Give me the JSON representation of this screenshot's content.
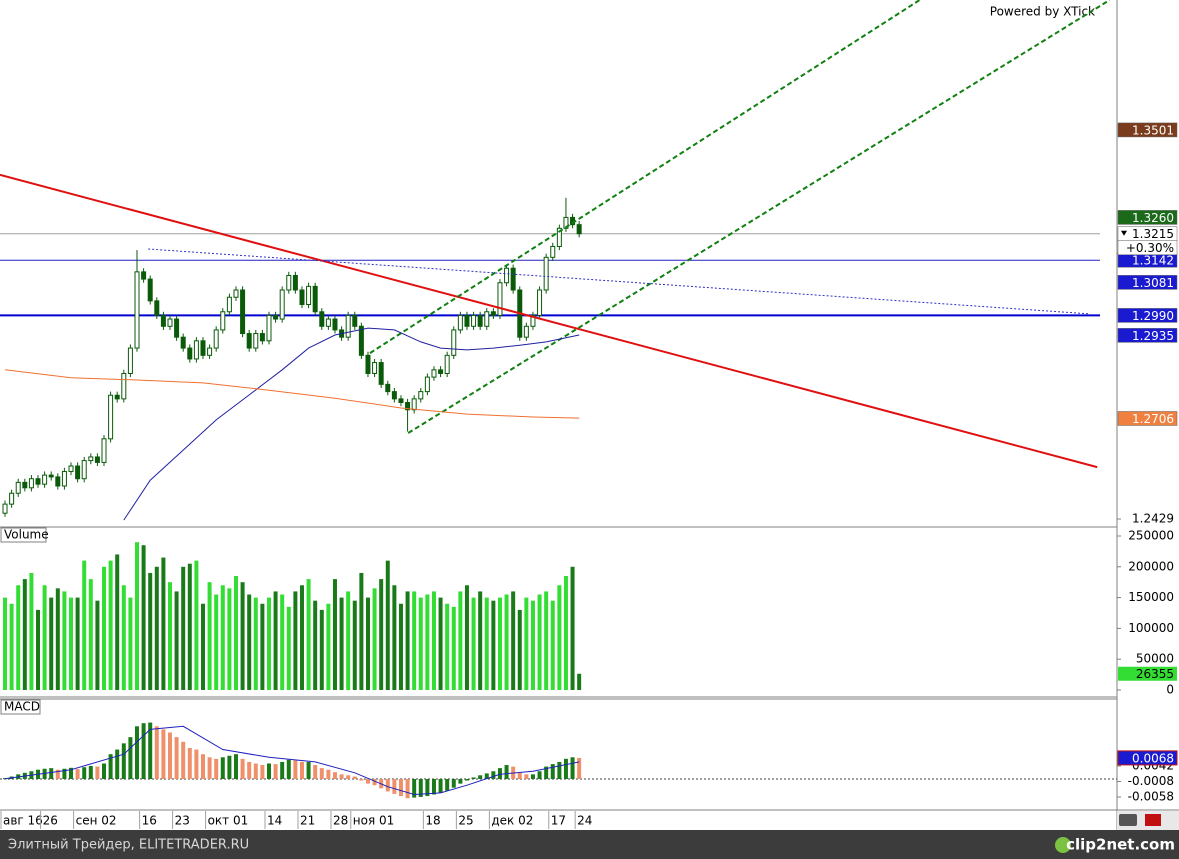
{
  "header": {
    "powered": "Powered by XTick"
  },
  "footer": {
    "site": "Элитный Трейдер, ELITETRADER.RU",
    "brand": "clip2net.com"
  },
  "chart_data": [
    {
      "type": "candlestick",
      "xlim": [
        -0.76,
        168.5
      ],
      "ylim": [
        1.2407,
        1.3859
      ],
      "yticks": [
        1.2429
      ],
      "up_color": "#ffffff",
      "down_color": "#0a5a0a",
      "edge_color": "#0a5a0a",
      "categories": [
        "авг 16",
        null,
        null,
        null,
        null,
        null,
        "26",
        null,
        null,
        null,
        null,
        "сен 02",
        null,
        null,
        null,
        null,
        null,
        null,
        null,
        null,
        null,
        "16",
        null,
        null,
        null,
        null,
        "23",
        null,
        null,
        null,
        null,
        "окт 01",
        null,
        null,
        null,
        null,
        null,
        null,
        null,
        null,
        "14",
        null,
        null,
        null,
        null,
        "21",
        null,
        null,
        null,
        null,
        "28",
        null,
        null,
        "ноя 01",
        null,
        null,
        null,
        null,
        null,
        null,
        null,
        null,
        null,
        null,
        "18",
        null,
        null,
        null,
        null,
        "25",
        null,
        null,
        null,
        null,
        "дек 02",
        null,
        null,
        null,
        null,
        null,
        null,
        null,
        null,
        "17",
        null,
        null,
        null,
        "24"
      ],
      "open": [
        1.2445,
        1.247,
        1.25,
        1.253,
        1.2515,
        1.254,
        1.2525,
        1.255,
        1.2545,
        1.252,
        1.256,
        1.2575,
        1.254,
        1.259,
        1.26,
        1.2585,
        1.265,
        1.277,
        1.276,
        1.283,
        1.29,
        1.311,
        1.309,
        1.303,
        1.299,
        1.296,
        1.298,
        1.293,
        1.29,
        1.287,
        1.292,
        1.288,
        1.29,
        1.295,
        1.3,
        1.304,
        1.306,
        1.294,
        1.29,
        1.294,
        1.292,
        1.299,
        1.298,
        1.306,
        1.31,
        1.306,
        1.302,
        1.307,
        1.3,
        1.296,
        1.298,
        1.295,
        1.293,
        1.299,
        1.296,
        1.288,
        1.283,
        1.286,
        1.28,
        1.278,
        1.276,
        1.275,
        1.273,
        1.276,
        1.278,
        1.282,
        1.284,
        1.283,
        1.288,
        1.295,
        1.299,
        1.296,
        1.299,
        1.296,
        1.3,
        1.299,
        1.308,
        1.312,
        1.306,
        1.293,
        1.296,
        1.299,
        1.306,
        1.315,
        1.318,
        1.323,
        1.326,
        1.324
      ],
      "high": [
        1.248,
        1.251,
        1.254,
        1.254,
        1.255,
        1.255,
        1.256,
        1.256,
        1.2555,
        1.257,
        1.2585,
        1.2585,
        1.26,
        1.261,
        1.261,
        1.266,
        1.278,
        1.278,
        1.284,
        1.291,
        1.317,
        1.312,
        1.31,
        1.304,
        1.3,
        1.299,
        1.299,
        1.294,
        1.291,
        1.293,
        1.293,
        1.291,
        1.296,
        1.301,
        1.305,
        1.307,
        1.307,
        1.295,
        1.295,
        1.295,
        1.3,
        1.3,
        1.307,
        1.311,
        1.311,
        1.307,
        1.308,
        1.308,
        1.301,
        1.299,
        1.299,
        1.296,
        1.3,
        1.3,
        1.297,
        1.289,
        1.287,
        1.287,
        1.281,
        1.279,
        1.277,
        1.276,
        1.277,
        1.279,
        1.283,
        1.285,
        1.285,
        1.289,
        1.296,
        1.3,
        1.3,
        1.3,
        1.3,
        1.301,
        1.301,
        1.309,
        1.313,
        1.313,
        1.307,
        1.297,
        1.3,
        1.307,
        1.316,
        1.319,
        1.324,
        1.3314,
        1.327,
        1.325
      ],
      "low": [
        1.2435,
        1.246,
        1.249,
        1.2505,
        1.2505,
        1.2515,
        1.2515,
        1.2535,
        1.251,
        1.251,
        1.255,
        1.253,
        1.253,
        1.258,
        1.2575,
        1.2575,
        1.264,
        1.275,
        1.275,
        1.282,
        1.289,
        1.308,
        1.302,
        1.298,
        1.295,
        1.295,
        1.292,
        1.289,
        1.286,
        1.286,
        1.287,
        1.287,
        1.289,
        1.294,
        1.299,
        1.303,
        1.293,
        1.289,
        1.289,
        1.291,
        1.291,
        1.297,
        1.297,
        1.305,
        1.305,
        1.301,
        1.301,
        1.299,
        1.295,
        1.295,
        1.294,
        1.292,
        1.292,
        1.295,
        1.287,
        1.282,
        1.282,
        1.279,
        1.277,
        1.275,
        1.274,
        1.267,
        1.272,
        1.275,
        1.277,
        1.281,
        1.282,
        1.282,
        1.287,
        1.294,
        1.295,
        1.295,
        1.295,
        1.295,
        1.298,
        1.298,
        1.307,
        1.305,
        1.292,
        1.292,
        1.295,
        1.298,
        1.305,
        1.314,
        1.317,
        1.322,
        1.323,
        1.3205
      ],
      "close": [
        1.247,
        1.25,
        1.253,
        1.2515,
        1.254,
        1.2525,
        1.255,
        1.2545,
        1.252,
        1.256,
        1.2575,
        1.254,
        1.259,
        1.26,
        1.2585,
        1.265,
        1.277,
        1.276,
        1.283,
        1.29,
        1.311,
        1.309,
        1.303,
        1.299,
        1.296,
        1.298,
        1.293,
        1.29,
        1.287,
        1.292,
        1.288,
        1.29,
        1.295,
        1.3,
        1.304,
        1.306,
        1.294,
        1.29,
        1.294,
        1.292,
        1.299,
        1.298,
        1.306,
        1.31,
        1.306,
        1.302,
        1.307,
        1.3,
        1.296,
        1.298,
        1.295,
        1.293,
        1.299,
        1.296,
        1.288,
        1.283,
        1.286,
        1.28,
        1.278,
        1.276,
        1.275,
        1.273,
        1.276,
        1.278,
        1.282,
        1.284,
        1.283,
        1.288,
        1.295,
        1.299,
        1.296,
        1.299,
        1.296,
        1.3,
        1.299,
        1.308,
        1.312,
        1.306,
        1.293,
        1.296,
        1.299,
        1.306,
        1.315,
        1.318,
        1.323,
        1.326,
        1.324,
        1.3215
      ],
      "overlays": [
        {
          "color": "#e01010",
          "width": 2,
          "dash": "none",
          "x": [
            -0.76,
            165.5
          ],
          "values": [
            1.3377,
            1.2572
          ]
        },
        {
          "color": "#108010",
          "width": 2,
          "dash": "5 3",
          "x": [
            55.3,
            138.6
          ],
          "values": [
            1.2886,
            1.3859
          ]
        },
        {
          "color": "#108010",
          "width": 2,
          "dash": "5 3",
          "x": [
            61.1,
            167.4
          ],
          "values": [
            1.2666,
            1.3859
          ]
        },
        {
          "color": "#3030c0",
          "width": 1,
          "dash": "2 2",
          "x": [
            21.7,
            164.4
          ],
          "values": [
            1.3173,
            1.2994
          ]
        },
        {
          "color": "#2020a0",
          "width": 1,
          "dash": "none",
          "x": [
            18,
            22,
            27,
            32,
            37,
            42,
            46,
            50,
            55,
            59,
            63,
            66,
            70,
            74,
            78,
            82,
            87
          ],
          "values": [
            1.2426,
            1.2536,
            1.2619,
            1.2702,
            1.2771,
            1.284,
            1.29,
            1.2936,
            1.2955,
            1.295,
            1.2917,
            1.29,
            1.2895,
            1.29,
            1.2908,
            1.2917,
            1.2936
          ]
        },
        {
          "color": "#f07030",
          "width": 1,
          "dash": "none",
          "x": [
            0,
            10,
            20,
            30,
            40,
            50,
            60,
            70,
            80,
            87
          ],
          "values": [
            1.284,
            1.2818,
            1.2812,
            1.2804,
            1.2784,
            1.2762,
            1.2735,
            1.2718,
            1.271,
            1.2707
          ]
        }
      ],
      "levels": [
        {
          "value": 1.3215,
          "color": "#a0a0a0",
          "width": 1
        },
        {
          "value": 1.3142,
          "color": "#2020c0",
          "width": 1
        },
        {
          "value": 1.299,
          "color": "#0000d0",
          "width": 2
        }
      ],
      "tags": [
        {
          "value": 1.3501,
          "color": "#7a3c1c",
          "text_color": "#ffffff"
        },
        {
          "value": {
            "value": 1.326,
            "label": "1.3260"
          },
          "color": "#1a6a1a",
          "text_color": "#ffffff"
        },
        {
          "value": 1.3215,
          "color": "#ffffff",
          "text_color": "#000000"
        },
        {
          "value": 1.3142,
          "color": "#1a1ad0",
          "text_color": "#ffffff"
        },
        {
          "value": 1.3081,
          "color": "#1a1ad0",
          "text_color": "#ffffff"
        },
        {
          "value": {
            "value": 1.299,
            "label": "1.2990"
          },
          "color": "#1a1ad0",
          "text_color": "#ffffff"
        },
        {
          "value": 1.2935,
          "color": "#1a1ad0",
          "text_color": "#ffffff"
        },
        {
          "value": 1.2706,
          "color": "#f08040",
          "text_color": "#ffffff"
        }
      ],
      "change": {
        "value": 0.3,
        "label": "+0.30%"
      }
    },
    {
      "type": "volume",
      "title": "Volume",
      "ylim": [
        -11400,
        264600
      ],
      "yticks": [
        0,
        50000,
        100000,
        150000,
        200000,
        250000
      ],
      "up_color": "#33dd33",
      "down_color": "#1a7a1a",
      "tag_color": "#33dd33",
      "values": [
        150000,
        140000,
        170000,
        180000,
        190000,
        130000,
        170000,
        150000,
        165000,
        160000,
        150000,
        150000,
        210000,
        180000,
        145000,
        200000,
        210000,
        220000,
        170000,
        150000,
        240000,
        235000,
        190000,
        200000,
        215000,
        175000,
        160000,
        200000,
        205000,
        210000,
        140000,
        175000,
        155000,
        170000,
        165000,
        185000,
        175000,
        155000,
        150000,
        140000,
        150000,
        160000,
        155000,
        135000,
        160000,
        170000,
        180000,
        145000,
        130000,
        140000,
        180000,
        150000,
        160000,
        145000,
        190000,
        150000,
        165000,
        180000,
        210000,
        170000,
        140000,
        160000,
        160000,
        150000,
        155000,
        160000,
        150000,
        140000,
        135000,
        160000,
        170000,
        150000,
        160000,
        150000,
        145000,
        150000,
        155000,
        160000,
        130000,
        150000,
        145000,
        155000,
        160000,
        145000,
        170000,
        185000,
        200000,
        26355
      ]
    },
    {
      "type": "macd",
      "title": "MACD",
      "ylim": [
        -0.01,
        0.0258
      ],
      "yticks": [
        0.0042,
        -0.0008,
        -0.0058
      ],
      "rise_color": "#1a7a1a",
      "fall_color": "#f0906a",
      "tag_color": "#1a1ad0",
      "values": [
        0.0003,
        0.0008,
        0.0015,
        0.002,
        0.0025,
        0.003,
        0.0033,
        0.0035,
        0.003,
        0.0033,
        0.0036,
        0.0032,
        0.0038,
        0.0042,
        0.004,
        0.005,
        0.008,
        0.0095,
        0.0115,
        0.0135,
        0.017,
        0.018,
        0.0182,
        0.017,
        0.016,
        0.015,
        0.0135,
        0.012,
        0.01,
        0.0095,
        0.008,
        0.007,
        0.0065,
        0.007,
        0.0075,
        0.008,
        0.0065,
        0.0055,
        0.005,
        0.0045,
        0.005,
        0.0048,
        0.0055,
        0.0062,
        0.006,
        0.0055,
        0.0055,
        0.0045,
        0.0035,
        0.003,
        0.0022,
        0.0015,
        0.0012,
        0.0008,
        -0.0005,
        -0.0015,
        -0.002,
        -0.003,
        -0.004,
        -0.0048,
        -0.0055,
        -0.0062,
        -0.006,
        -0.0058,
        -0.0055,
        -0.005,
        -0.0045,
        -0.0038,
        -0.0028,
        -0.0015,
        -0.0005,
        0.0005,
        0.0012,
        0.0018,
        0.0025,
        0.0035,
        0.0045,
        0.004,
        0.002,
        0.0015,
        0.0015,
        0.0025,
        0.004,
        0.0048,
        0.0055,
        0.0065,
        0.007,
        0.0068
      ],
      "signal": {
        "color": "#2020c0",
        "x": [
          0,
          10,
          18,
          22,
          27,
          33,
          40,
          47,
          53,
          58,
          62,
          66,
          70,
          75,
          80,
          87
        ],
        "values": [
          0.0001,
          0.003,
          0.008,
          0.016,
          0.017,
          0.0095,
          0.007,
          0.0055,
          0.002,
          -0.0025,
          -0.005,
          -0.0045,
          -0.002,
          0.0015,
          0.0025,
          0.0055
        ]
      }
    }
  ]
}
